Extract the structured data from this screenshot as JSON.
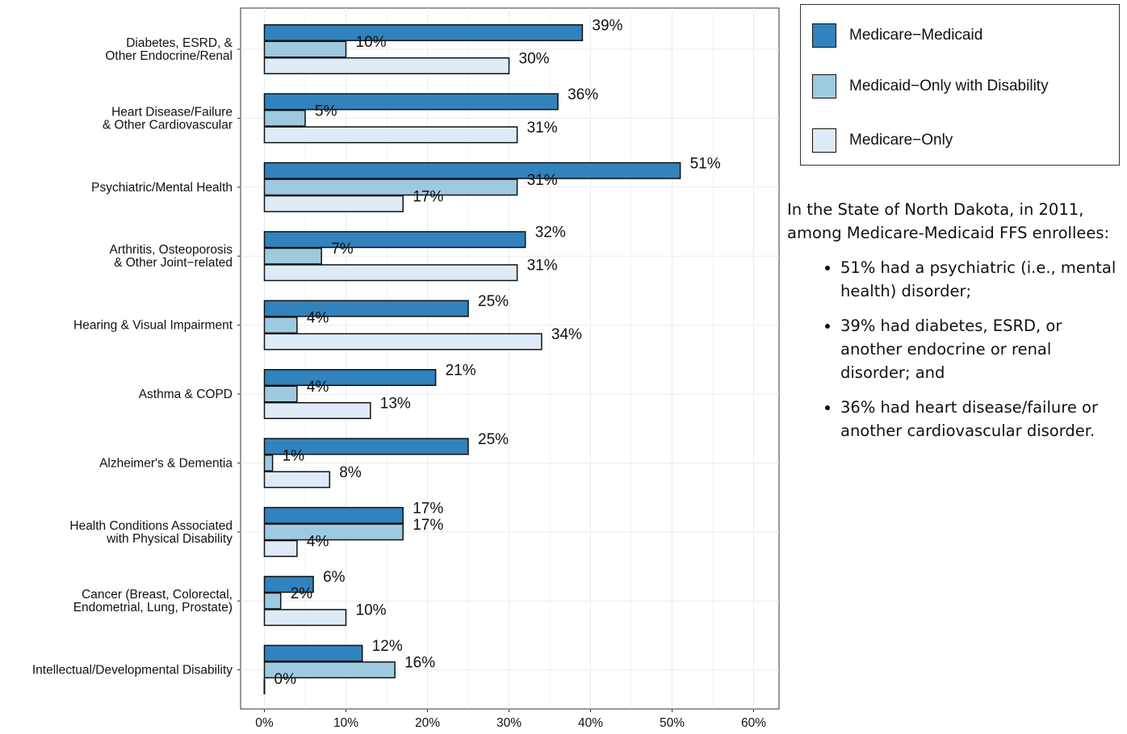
{
  "chart_data": {
    "type": "bar",
    "orientation": "horizontal",
    "categories": [
      [
        "Diabetes, ESRD, &",
        "Other Endocrine/Renal"
      ],
      [
        "Heart Disease/Failure",
        "& Other Cardiovascular"
      ],
      [
        "Psychiatric/Mental Health"
      ],
      [
        "Arthritis, Osteoporosis",
        "& Other Joint−related"
      ],
      [
        "Hearing & Visual Impairment"
      ],
      [
        "Asthma & COPD"
      ],
      [
        "Alzheimer's & Dementia"
      ],
      [
        "Health Conditions Associated",
        "with Physical Disability"
      ],
      [
        "Cancer (Breast, Colorectal,",
        "Endometrial, Lung, Prostate)"
      ],
      [
        "Intellectual/Developmental Disability"
      ]
    ],
    "series": [
      {
        "name": "Medicare−Medicaid",
        "color": "#3182bd",
        "values": [
          39,
          36,
          51,
          32,
          25,
          21,
          25,
          17,
          6,
          12
        ],
        "value_labels": [
          "39%",
          "36%",
          "51%",
          "32%",
          "25%",
          "21%",
          "25%",
          "17%",
          "6%",
          "12%"
        ]
      },
      {
        "name": "Medicaid−Only with Disability",
        "color": "#9ecae1",
        "values": [
          10,
          5,
          31,
          7,
          4,
          4,
          1,
          17,
          2,
          16
        ],
        "value_labels": [
          "10%",
          "5%",
          "31%",
          "7%",
          "4%",
          "4%",
          "1%",
          "17%",
          "2%",
          "16%"
        ]
      },
      {
        "name": "Medicare−Only",
        "color": "#deebf7",
        "values": [
          30,
          31,
          17,
          31,
          34,
          13,
          8,
          4,
          10,
          0
        ],
        "value_labels": [
          "30%",
          "31%",
          "17%",
          "31%",
          "34%",
          "13%",
          "8%",
          "4%",
          "10%",
          "0%"
        ]
      }
    ],
    "xlim": [
      0,
      60
    ],
    "xticks": [
      0,
      10,
      20,
      30,
      40,
      50,
      60
    ],
    "xtick_labels": [
      "0%",
      "10%",
      "20%",
      "30%",
      "40%",
      "50%",
      "60%"
    ],
    "grid": true,
    "legend_position": "top-right"
  },
  "summary": {
    "intro": "In the State of North Dakota, in 2011, among Medicare-Medicaid FFS enrollees:",
    "bullets": [
      "51% had a psychiatric (i.e., mental health) disorder;",
      "39% had diabetes, ESRD, or another endocrine or renal disorder; and",
      "36% had heart disease/failure or another cardiovascular disorder."
    ]
  }
}
